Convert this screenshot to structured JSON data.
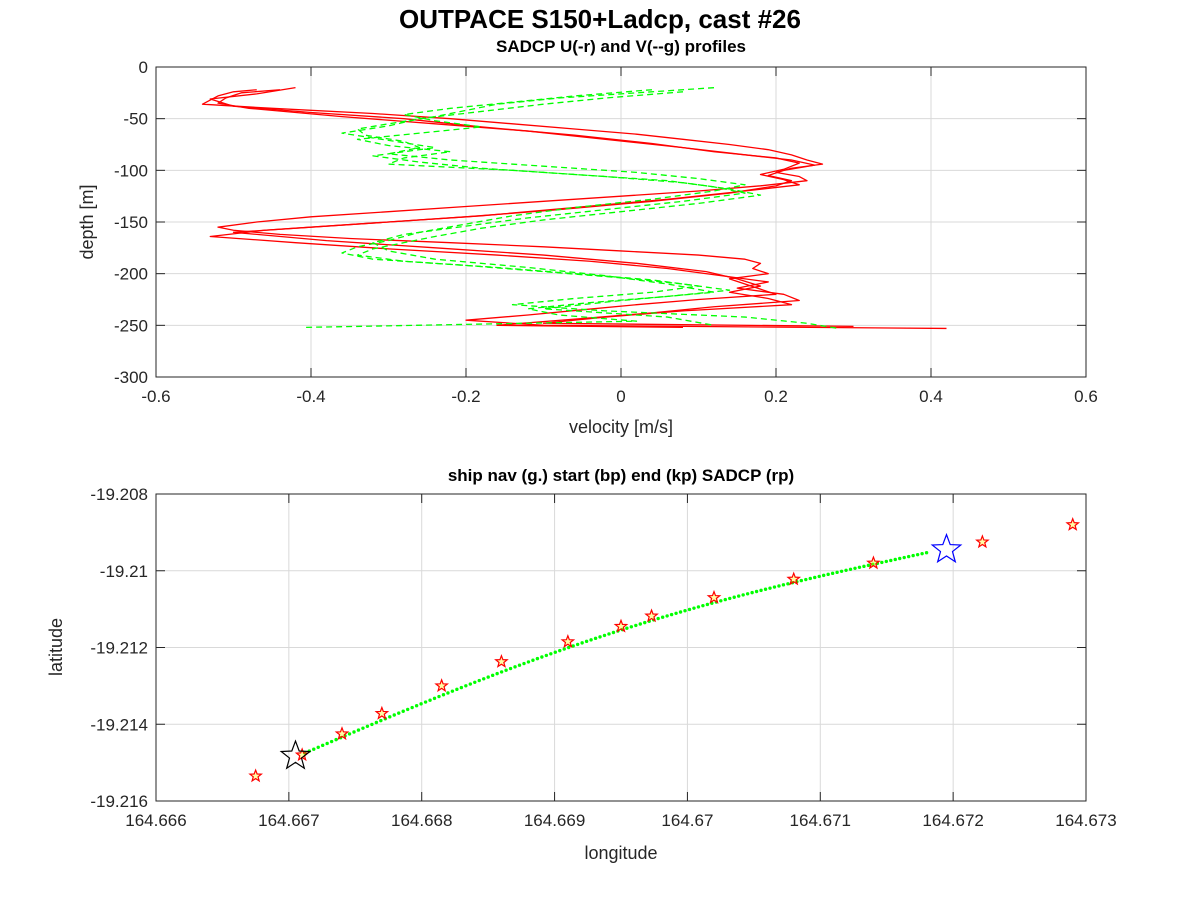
{
  "figure": {
    "title": "OUTPACE S150+Ladcp, cast #26"
  },
  "colors": {
    "u_series": "#ff0000",
    "v_series": "#00ff00",
    "nav": "#00ff00",
    "start_marker": "#0000ff",
    "end_marker": "#000000",
    "sadcp_marker": "#ff0000"
  },
  "chart_data": [
    {
      "type": "line",
      "title": "SADCP U(-r) and V(--g) profiles",
      "xlabel": "velocity [m/s]",
      "ylabel": "depth [m]",
      "xlim": [
        -0.6,
        0.6
      ],
      "ylim": [
        -300,
        0
      ],
      "xticks": [
        "-0.6",
        "-0.4",
        "-0.2",
        "0",
        "0.2",
        "0.4",
        "0.6"
      ],
      "yticks": [
        "-300",
        "-250",
        "-200",
        "-150",
        "-100",
        "-50",
        "0"
      ],
      "grid": true,
      "series": [
        {
          "color": "red",
          "linestyle": "solid",
          "depth": [
            -22,
            -24,
            -28,
            -32,
            -36,
            -40,
            -45,
            -50,
            -55,
            -60,
            -65,
            -70,
            -75,
            -80,
            -85,
            -90,
            -94,
            -98,
            -102,
            -106,
            -110,
            -115,
            -120,
            -125,
            -130,
            -135,
            -140,
            -145,
            -150,
            -155,
            -158,
            -162,
            -166,
            -170,
            -174,
            -178,
            -182,
            -186,
            -190,
            -195,
            -200,
            -205,
            -210,
            -215,
            -220,
            -225,
            -230,
            -235,
            -240,
            -245,
            -250,
            -253
          ],
          "values": [
            -0.47,
            -0.5,
            -0.52,
            -0.53,
            -0.54,
            -0.45,
            -0.32,
            -0.22,
            -0.14,
            -0.06,
            0.02,
            0.08,
            0.14,
            0.19,
            0.22,
            0.24,
            0.26,
            0.22,
            0.2,
            0.23,
            0.24,
            0.18,
            0.1,
            0.0,
            -0.1,
            -0.2,
            -0.3,
            -0.4,
            -0.47,
            -0.52,
            -0.5,
            -0.44,
            -0.35,
            -0.22,
            -0.1,
            0.0,
            0.1,
            0.16,
            0.18,
            0.17,
            0.19,
            0.14,
            0.16,
            0.18,
            0.2,
            0.1,
            0.02,
            -0.05,
            -0.12,
            -0.2,
            -0.1,
            0.42
          ]
        },
        {
          "color": "red",
          "linestyle": "solid",
          "depth": [
            -22,
            -25,
            -30,
            -35,
            -40,
            -48,
            -55,
            -62,
            -70,
            -78,
            -85,
            -90,
            -95,
            -100,
            -105,
            -110,
            -115,
            -122,
            -130,
            -138,
            -145,
            -152,
            -158,
            -164,
            -170,
            -176,
            -182,
            -188,
            -195,
            -202,
            -208,
            -214,
            -220,
            -226,
            -232,
            -238,
            -244,
            -250,
            -252
          ],
          "values": [
            -0.44,
            -0.49,
            -0.51,
            -0.52,
            -0.48,
            -0.36,
            -0.24,
            -0.12,
            -0.02,
            0.08,
            0.16,
            0.22,
            0.25,
            0.21,
            0.19,
            0.22,
            0.2,
            0.14,
            0.04,
            -0.08,
            -0.2,
            -0.34,
            -0.46,
            -0.53,
            -0.42,
            -0.3,
            -0.16,
            -0.04,
            0.06,
            0.13,
            0.19,
            0.15,
            0.21,
            0.23,
            0.12,
            0.04,
            -0.06,
            -0.16,
            0.08
          ]
        },
        {
          "color": "red",
          "linestyle": "solid",
          "depth": [
            -20,
            -26,
            -31,
            -38,
            -44,
            -50,
            -58,
            -66,
            -74,
            -82,
            -88,
            -93,
            -99,
            -104,
            -109,
            -114,
            -120,
            -128,
            -136,
            -144,
            -150,
            -156,
            -160,
            -168,
            -175,
            -182,
            -190,
            -198,
            -205,
            -212,
            -218,
            -224,
            -230,
            -236,
            -242,
            -248,
            -251
          ],
          "values": [
            -0.42,
            -0.47,
            -0.53,
            -0.5,
            -0.4,
            -0.28,
            -0.18,
            -0.06,
            0.04,
            0.12,
            0.2,
            0.23,
            0.21,
            0.18,
            0.21,
            0.23,
            0.16,
            0.06,
            -0.06,
            -0.18,
            -0.3,
            -0.42,
            -0.5,
            -0.38,
            -0.24,
            -0.1,
            0.02,
            0.11,
            0.15,
            0.18,
            0.14,
            0.19,
            0.22,
            0.08,
            -0.02,
            -0.1,
            0.3
          ]
        },
        {
          "color": "green",
          "linestyle": "dashed",
          "depth": [
            -20,
            -25,
            -30,
            -36,
            -42,
            -48,
            -55,
            -60,
            -66,
            -72,
            -78,
            -84,
            -90,
            -96,
            -102,
            -108,
            -114,
            -120,
            -128,
            -136,
            -144,
            -152,
            -160,
            -168,
            -174,
            -180,
            -186,
            -192,
            -198,
            -204,
            -210,
            -216,
            -222,
            -228,
            -234,
            -240,
            -246,
            -252
          ],
          "values": [
            0.12,
            0.02,
            -0.08,
            -0.16,
            -0.2,
            -0.24,
            -0.3,
            -0.34,
            -0.33,
            -0.28,
            -0.26,
            -0.3,
            -0.22,
            -0.1,
            0.02,
            0.1,
            0.16,
            0.12,
            0.04,
            -0.06,
            -0.14,
            -0.2,
            -0.26,
            -0.3,
            -0.34,
            -0.36,
            -0.32,
            -0.2,
            -0.1,
            0.0,
            0.08,
            0.14,
            0.06,
            -0.04,
            -0.12,
            -0.08,
            0.02,
            -0.41
          ]
        },
        {
          "color": "green",
          "linestyle": "dashed",
          "depth": [
            -22,
            -28,
            -34,
            -40,
            -46,
            -52,
            -58,
            -64,
            -70,
            -76,
            -82,
            -88,
            -94,
            -100,
            -106,
            -112,
            -118,
            -124,
            -132,
            -140,
            -148,
            -156,
            -164,
            -170,
            -176,
            -182,
            -188,
            -194,
            -200,
            -206,
            -212,
            -218,
            -224,
            -230,
            -236,
            -242,
            -248,
            -253
          ],
          "values": [
            0.04,
            -0.06,
            -0.14,
            -0.22,
            -0.28,
            -0.24,
            -0.18,
            -0.26,
            -0.34,
            -0.3,
            -0.22,
            -0.28,
            -0.3,
            -0.14,
            -0.02,
            0.08,
            0.14,
            0.18,
            0.1,
            0.0,
            -0.1,
            -0.18,
            -0.24,
            -0.28,
            -0.32,
            -0.34,
            -0.28,
            -0.16,
            -0.06,
            0.04,
            0.1,
            0.04,
            -0.06,
            -0.14,
            -0.02,
            0.16,
            0.24,
            0.28
          ]
        },
        {
          "color": "green",
          "linestyle": "dashed",
          "depth": [
            -24,
            -30,
            -36,
            -43,
            -50,
            -57,
            -64,
            -71,
            -78,
            -86,
            -92,
            -98,
            -104,
            -110,
            -116,
            -122,
            -130,
            -138,
            -146,
            -154,
            -162,
            -170,
            -178,
            -186,
            -194,
            -202,
            -210,
            -218,
            -226,
            -234,
            -242,
            -250
          ],
          "values": [
            0.08,
            -0.02,
            -0.1,
            -0.18,
            -0.26,
            -0.3,
            -0.36,
            -0.3,
            -0.24,
            -0.32,
            -0.26,
            -0.18,
            -0.06,
            0.06,
            0.12,
            0.16,
            0.08,
            -0.02,
            -0.12,
            -0.2,
            -0.28,
            -0.32,
            -0.3,
            -0.24,
            -0.12,
            -0.02,
            0.06,
            0.12,
            0.0,
            -0.1,
            0.06,
            0.12
          ]
        }
      ]
    },
    {
      "type": "scatter",
      "title": "ship nav (g.) start (bp) end (kp) SADCP (rp)",
      "xlabel": "longitude",
      "ylabel": "latitude",
      "xlim": [
        164.666,
        164.673
      ],
      "ylim": [
        -19.216,
        -19.208
      ],
      "xticks": [
        "164.666",
        "164.667",
        "164.668",
        "164.669",
        "164.67",
        "164.671",
        "164.672",
        "164.673"
      ],
      "yticks": [
        "-19.216",
        "-19.214",
        "-19.212",
        "-19.21",
        "-19.208"
      ],
      "grid": true,
      "nav_track": {
        "start_lon": 164.66712,
        "start_lat": -19.21475,
        "end_lon": 164.6718,
        "end_lat": -19.20953,
        "points": 140
      },
      "start_marker": {
        "lon": 164.67195,
        "lat": -19.20945
      },
      "end_marker": {
        "lon": 164.66705,
        "lat": -19.21483
      },
      "sadcp_points": [
        {
          "lon": 164.66675,
          "lat": -19.21535
        },
        {
          "lon": 164.6671,
          "lat": -19.2148
        },
        {
          "lon": 164.6674,
          "lat": -19.21425
        },
        {
          "lon": 164.6677,
          "lat": -19.21372
        },
        {
          "lon": 164.66815,
          "lat": -19.213
        },
        {
          "lon": 164.6686,
          "lat": -19.21237
        },
        {
          "lon": 164.6691,
          "lat": -19.21185
        },
        {
          "lon": 164.6695,
          "lat": -19.21145
        },
        {
          "lon": 164.66973,
          "lat": -19.21118
        },
        {
          "lon": 164.6702,
          "lat": -19.2107
        },
        {
          "lon": 164.6708,
          "lat": -19.21022
        },
        {
          "lon": 164.6714,
          "lat": -19.2098
        },
        {
          "lon": 164.67222,
          "lat": -19.20925
        },
        {
          "lon": 164.6729,
          "lat": -19.2088
        }
      ]
    }
  ]
}
